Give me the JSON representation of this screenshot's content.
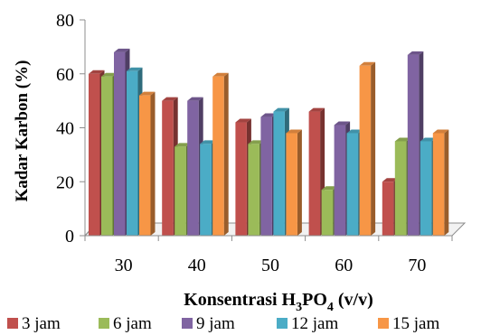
{
  "chart_data": {
    "type": "bar",
    "categories": [
      "30",
      "40",
      "50",
      "60",
      "70"
    ],
    "series": [
      {
        "name": "3 jam",
        "values": [
          60,
          50,
          42,
          46,
          20
        ]
      },
      {
        "name": "6 jam",
        "values": [
          59,
          33,
          34,
          17,
          35
        ]
      },
      {
        "name": "9 jam",
        "values": [
          68,
          50,
          44,
          41,
          67
        ]
      },
      {
        "name": "12 jam",
        "values": [
          61,
          34,
          46,
          38,
          35
        ]
      },
      {
        "name": "15 jam",
        "values": [
          52,
          59,
          38,
          63,
          38
        ]
      }
    ],
    "ylim": [
      0,
      80
    ],
    "yticks": [
      "0",
      "20",
      "40",
      "60",
      "80"
    ],
    "ylabel": "Kadar Karbon (%)",
    "xlabel": {
      "prefix": "Konsentrasi H",
      "sub1": "3",
      "mid": "PO",
      "sub2": "4",
      "suffix": " (v/v)"
    },
    "legend_position": "bottom",
    "grid": false,
    "colors": [
      "#c0504d",
      "#9bbb59",
      "#8064a2",
      "#4bacc6",
      "#f79646"
    ]
  }
}
